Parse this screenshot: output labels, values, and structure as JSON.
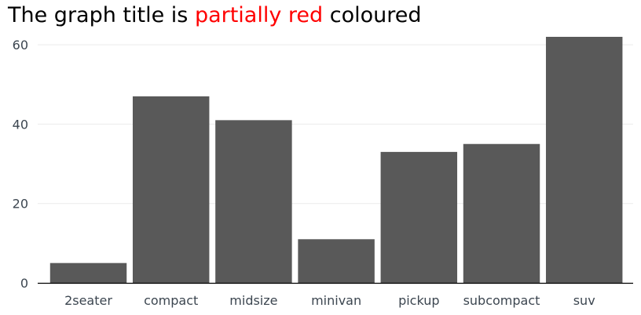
{
  "title": {
    "before": "The graph title is ",
    "highlight": "partially red",
    "after": " coloured",
    "highlight_color": "#ff0000"
  },
  "chart_data": {
    "type": "bar",
    "categories": [
      "2seater",
      "compact",
      "midsize",
      "minivan",
      "pickup",
      "subcompact",
      "suv"
    ],
    "values": [
      5,
      47,
      41,
      11,
      33,
      35,
      62
    ],
    "ylim": [
      0,
      62
    ],
    "yticks": [
      0,
      20,
      40,
      60
    ],
    "xlabel": "",
    "ylabel": "",
    "grid": "horizontal",
    "bar_color": "#595959",
    "grid_color": "#ebebeb",
    "axis_color": "#000000",
    "tick_label_color": "#3c4650"
  }
}
